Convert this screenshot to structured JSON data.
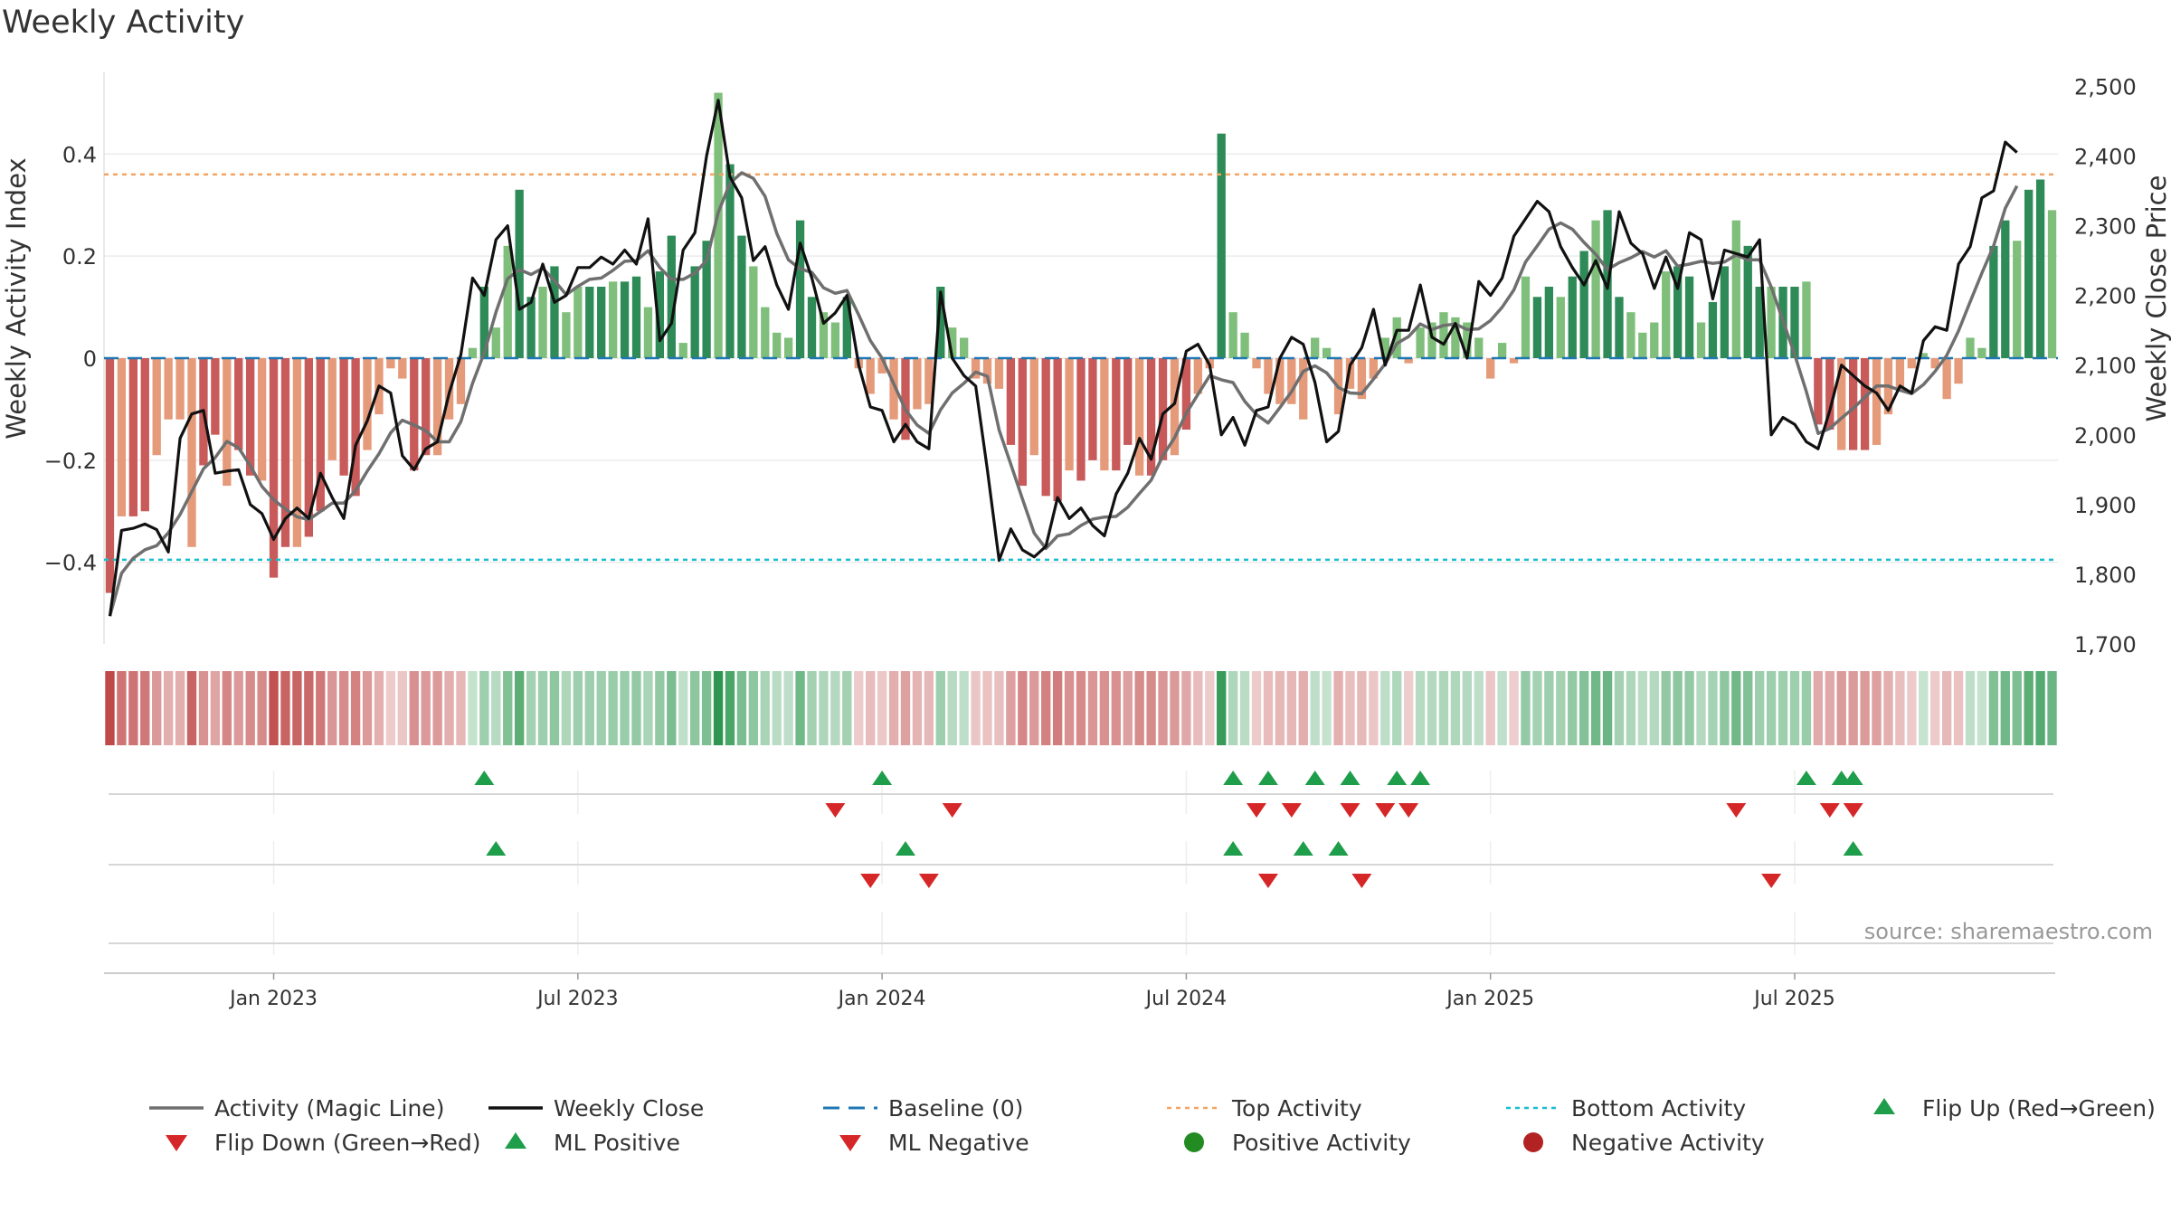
{
  "chart_data": {
    "type": "bar",
    "title": "Weekly Activity",
    "ylabel_left": "Weekly Activity Index",
    "ylabel_right": "Weekly Close Price",
    "source": "source: sharemaestro.com",
    "ylim_left": [
      -0.56,
      0.56
    ],
    "ylim_right": [
      1700,
      2520
    ],
    "yticks_left": [
      {
        "v": 0.4,
        "label": "0.4"
      },
      {
        "v": 0.2,
        "label": "0.2"
      },
      {
        "v": 0,
        "label": "0"
      },
      {
        "v": -0.2,
        "label": "−0.2"
      },
      {
        "v": -0.4,
        "label": "−0.4"
      }
    ],
    "yticks_right": [
      {
        "v": 2500,
        "label": "2,500"
      },
      {
        "v": 2400,
        "label": "2,400"
      },
      {
        "v": 2300,
        "label": "2,300"
      },
      {
        "v": 2200,
        "label": "2,200"
      },
      {
        "v": 2100,
        "label": "2,100"
      },
      {
        "v": 2000,
        "label": "2,000"
      },
      {
        "v": 1900,
        "label": "1,900"
      },
      {
        "v": 1800,
        "label": "1,800"
      },
      {
        "v": 1700,
        "label": "1,700"
      }
    ],
    "xticks": [
      {
        "week": 14,
        "label": "Jan 2023"
      },
      {
        "week": 40,
        "label": "Jul 2023"
      },
      {
        "week": 66,
        "label": "Jan 2024"
      },
      {
        "week": 92,
        "label": "Jul 2024"
      },
      {
        "week": 118,
        "label": "Jan 2025"
      },
      {
        "week": 144,
        "label": "Jul 2025"
      }
    ],
    "top_activity": 0.36,
    "bottom_activity": -0.395,
    "colors": {
      "pos_strong": "#2e8b57",
      "pos_light": "#7fbf7b",
      "neg_strong": "#c85a5a",
      "neg_light": "#e59a7a",
      "close_line": "#111111",
      "magic_line": "#6f6f6f",
      "baseline": "#1f77b4",
      "top_line": "#f4a460",
      "bottom_line": "#17becf",
      "flip_up": "#1e9e4a",
      "flip_down": "#d62728",
      "pos_dot": "#228b22",
      "neg_dot": "#b22222"
    },
    "activity": [
      -0.46,
      -0.31,
      -0.31,
      -0.3,
      -0.19,
      -0.12,
      -0.12,
      -0.37,
      -0.21,
      -0.15,
      -0.25,
      -0.18,
      -0.23,
      -0.24,
      -0.43,
      -0.37,
      -0.37,
      -0.35,
      -0.3,
      -0.2,
      -0.23,
      -0.27,
      -0.18,
      -0.11,
      -0.02,
      -0.04,
      -0.22,
      -0.19,
      -0.19,
      -0.12,
      -0.09,
      0.02,
      0.14,
      0.06,
      0.22,
      0.33,
      0.12,
      0.14,
      0.18,
      0.09,
      0.14,
      0.14,
      0.14,
      0.15,
      0.15,
      0.16,
      0.1,
      0.17,
      0.24,
      0.03,
      0.18,
      0.23,
      0.52,
      0.38,
      0.24,
      0.18,
      0.1,
      0.05,
      0.04,
      0.27,
      0.12,
      0.09,
      0.07,
      0.12,
      -0.02,
      -0.07,
      -0.03,
      -0.12,
      -0.16,
      -0.1,
      -0.09,
      0.14,
      0.06,
      0.04,
      -0.04,
      -0.05,
      -0.06,
      -0.17,
      -0.25,
      -0.19,
      -0.27,
      -0.28,
      -0.22,
      -0.24,
      -0.2,
      -0.22,
      -0.22,
      -0.17,
      -0.23,
      -0.23,
      -0.2,
      -0.19,
      -0.14,
      -0.07,
      -0.02,
      0.44,
      0.09,
      0.05,
      -0.02,
      -0.07,
      -0.09,
      -0.09,
      -0.12,
      0.04,
      0.02,
      -0.11,
      -0.06,
      -0.08,
      -0.04,
      0.04,
      0.08,
      -0.01,
      0.06,
      0.07,
      0.09,
      0.08,
      0.07,
      0.04,
      -0.04,
      0.03,
      -0.01,
      0.16,
      0.12,
      0.14,
      0.12,
      0.16,
      0.21,
      0.27,
      0.29,
      0.12,
      0.09,
      0.05,
      0.07,
      0.17,
      0.18,
      0.16,
      0.07,
      0.11,
      0.18,
      0.27,
      0.22,
      0.14,
      0.14,
      0.14,
      0.14,
      0.15,
      -0.13,
      -0.14,
      -0.18,
      -0.18,
      -0.18,
      -0.17,
      -0.11,
      -0.06,
      -0.02,
      0.01,
      -0.02,
      -0.08,
      -0.05,
      0.04,
      0.02,
      0.22,
      0.27,
      0.23,
      0.33,
      0.35,
      0.29
    ],
    "close": [
      1740,
      1863,
      1866,
      1872,
      1864,
      1832,
      1995,
      2030,
      2035,
      1945,
      1948,
      1950,
      1900,
      1887,
      1850,
      1880,
      1895,
      1880,
      1945,
      1910,
      1880,
      1985,
      2020,
      2070,
      2060,
      1970,
      1950,
      1980,
      1990,
      2060,
      2115,
      2225,
      2200,
      2280,
      2300,
      2180,
      2190,
      2245,
      2190,
      2200,
      2240,
      2240,
      2255,
      2245,
      2265,
      2245,
      2310,
      2135,
      2160,
      2265,
      2290,
      2400,
      2480,
      2370,
      2340,
      2250,
      2270,
      2215,
      2180,
      2275,
      2225,
      2160,
      2175,
      2200,
      2100,
      2040,
      2035,
      1990,
      2015,
      1990,
      1980,
      2205,
      2110,
      2085,
      2070,
      1950,
      1820,
      1865,
      1835,
      1825,
      1840,
      1910,
      1880,
      1895,
      1870,
      1855,
      1915,
      1945,
      1995,
      1965,
      2030,
      2045,
      2120,
      2130,
      2100,
      2000,
      2025,
      1985,
      2035,
      2040,
      2110,
      2140,
      2130,
      2075,
      1990,
      2005,
      2100,
      2125,
      2180,
      2100,
      2150,
      2150,
      2215,
      2140,
      2130,
      2160,
      2110,
      2220,
      2200,
      2225,
      2285,
      2310,
      2335,
      2320,
      2270,
      2240,
      2215,
      2250,
      2210,
      2320,
      2275,
      2260,
      2210,
      2255,
      2210,
      2290,
      2280,
      2195,
      2265,
      2260,
      2255,
      2280,
      2000,
      2025,
      2015,
      1990,
      1980,
      2035,
      2100,
      2085,
      2070,
      2060,
      2035,
      2070,
      2060,
      2135,
      2155,
      2150,
      2245,
      2270,
      2340,
      2350,
      2420,
      2405
    ]
  },
  "strip_row_1": {
    "up_weeks": [
      32,
      66,
      96,
      99,
      103,
      106,
      110,
      112,
      145,
      148,
      149
    ],
    "down_weeks": [
      62,
      72,
      98,
      101,
      106,
      109,
      111,
      139,
      147,
      149
    ]
  },
  "strip_row_2": {
    "up_weeks": [
      33,
      68,
      96,
      102,
      105,
      149
    ],
    "down_weeks": [
      65,
      70,
      99,
      107,
      142
    ]
  },
  "legend": [
    {
      "key": "magic",
      "label": "Activity (Magic Line)"
    },
    {
      "key": "close",
      "label": "Weekly Close"
    },
    {
      "key": "baseline",
      "label": "Baseline (0)"
    },
    {
      "key": "top",
      "label": "Top Activity"
    },
    {
      "key": "bottom",
      "label": "Bottom Activity"
    },
    {
      "key": "flipup",
      "label": "Flip Up (Red→Green)"
    },
    {
      "key": "flipdown",
      "label": "Flip Down (Green→Red)"
    },
    {
      "key": "mlpos",
      "label": "ML Positive"
    },
    {
      "key": "mlneg",
      "label": "ML Negative"
    },
    {
      "key": "posact",
      "label": "Positive Activity"
    },
    {
      "key": "negact",
      "label": "Negative Activity"
    }
  ]
}
